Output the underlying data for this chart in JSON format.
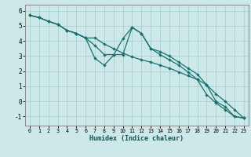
{
  "title": "",
  "xlabel": "Humidex (Indice chaleur)",
  "background_color": "#cce8e8",
  "grid_color": "#aacfcf",
  "line_color": "#1a7070",
  "xlim": [
    -0.5,
    23.5
  ],
  "ylim": [
    -1.6,
    6.4
  ],
  "xticks": [
    0,
    1,
    2,
    3,
    4,
    5,
    6,
    7,
    8,
    9,
    10,
    11,
    12,
    13,
    14,
    15,
    16,
    17,
    18,
    19,
    20,
    21,
    22,
    23
  ],
  "yticks": [
    -1,
    0,
    1,
    2,
    3,
    4,
    5,
    6
  ],
  "line1_x": [
    0,
    1,
    2,
    3,
    4,
    5,
    6,
    7,
    8,
    9,
    10,
    11,
    12,
    13,
    14,
    15,
    16,
    17,
    18,
    19,
    20,
    21,
    22,
    23
  ],
  "line1_y": [
    5.7,
    5.55,
    5.3,
    5.1,
    4.7,
    4.5,
    4.2,
    3.7,
    3.1,
    3.1,
    3.1,
    4.9,
    4.5,
    3.5,
    3.3,
    3.0,
    2.6,
    2.2,
    1.8,
    1.1,
    0.0,
    -0.35,
    -1.0,
    -1.1
  ],
  "line2_x": [
    0,
    1,
    2,
    3,
    4,
    5,
    6,
    7,
    8,
    9,
    10,
    11,
    12,
    13,
    14,
    15,
    16,
    17,
    18,
    19,
    20,
    21,
    22,
    23
  ],
  "line2_y": [
    5.7,
    5.55,
    5.3,
    5.1,
    4.7,
    4.5,
    4.2,
    2.85,
    2.4,
    3.05,
    4.15,
    4.9,
    4.5,
    3.5,
    3.1,
    2.75,
    2.4,
    1.95,
    1.45,
    0.45,
    -0.1,
    -0.55,
    -1.0,
    -1.1
  ],
  "line3_x": [
    0,
    1,
    2,
    3,
    4,
    5,
    6,
    7,
    8,
    9,
    10,
    11,
    12,
    13,
    14,
    15,
    16,
    17,
    18,
    19,
    20,
    21,
    22,
    23
  ],
  "line3_y": [
    5.7,
    5.55,
    5.3,
    5.1,
    4.7,
    4.5,
    4.2,
    4.2,
    3.8,
    3.5,
    3.2,
    2.95,
    2.75,
    2.6,
    2.4,
    2.2,
    1.95,
    1.7,
    1.45,
    1.1,
    0.5,
    0.0,
    -0.55,
    -1.1
  ]
}
